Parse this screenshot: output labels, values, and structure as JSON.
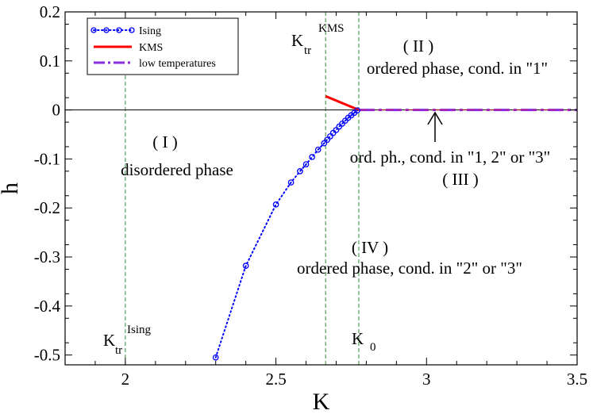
{
  "chart_data": {
    "type": "line",
    "title": "",
    "xlabel": "K",
    "ylabel": "h",
    "xlim": [
      1.8,
      3.5
    ],
    "ylim": [
      -0.52,
      0.2
    ],
    "xticks": [
      "2",
      "2.5",
      "3",
      "3.5"
    ],
    "xtick_values": [
      2,
      2.5,
      3,
      3.5
    ],
    "yticks": [
      "0.2",
      "0.1",
      "0",
      "-0.1",
      "-0.2",
      "-0.3",
      "-0.4",
      "-0.5"
    ],
    "ytick_values": [
      0.2,
      0.1,
      0,
      -0.1,
      -0.2,
      -0.3,
      -0.4,
      -0.5
    ],
    "grid": false,
    "legend_position": "top-left",
    "series": [
      {
        "name": "Ising",
        "color": "#0000ff",
        "x": [
          2.3,
          2.4,
          2.5,
          2.55,
          2.58,
          2.6,
          2.62,
          2.64,
          2.66,
          2.67,
          2.68,
          2.69,
          2.7,
          2.71,
          2.72,
          2.73,
          2.74,
          2.75,
          2.76,
          2.77
        ],
        "y": [
          -0.505,
          -0.318,
          -0.193,
          -0.148,
          -0.125,
          -0.111,
          -0.096,
          -0.081,
          -0.068,
          -0.061,
          -0.054,
          -0.047,
          -0.041,
          -0.034,
          -0.028,
          -0.022,
          -0.016,
          -0.011,
          -0.006,
          -0.001
        ]
      },
      {
        "name": "KMS",
        "color": "#ff0000",
        "x": [
          2.665,
          2.775
        ],
        "y": [
          0.028,
          0.0
        ]
      },
      {
        "name": "low temperatures",
        "color": "#8a2be2",
        "x": [
          2.775,
          3.5
        ],
        "y": [
          0.0,
          0.0
        ]
      }
    ],
    "vlines": [
      2.0,
      2.665,
      2.775
    ],
    "annotations": {
      "k_ising_main": "K",
      "k_ising_sub": "tr",
      "k_ising_sup": "Ising",
      "k_kms_main": "K",
      "k_kms_sub": "tr",
      "k_kms_sup": "KMS",
      "k0_main": "K",
      "k0_sub": "0",
      "region1_label": "( I )",
      "region1_desc": "disordered phase",
      "region2_label": "( II )",
      "region2_desc": "ordered phase, cond. in \"1\"",
      "region3_desc": "ord. ph., cond. in \"1, 2\" or \"3\"",
      "region3_label": "( III )",
      "region4_label": "( IV )",
      "region4_desc": "ordered phase, cond. in \"2\" or \"3\""
    }
  }
}
